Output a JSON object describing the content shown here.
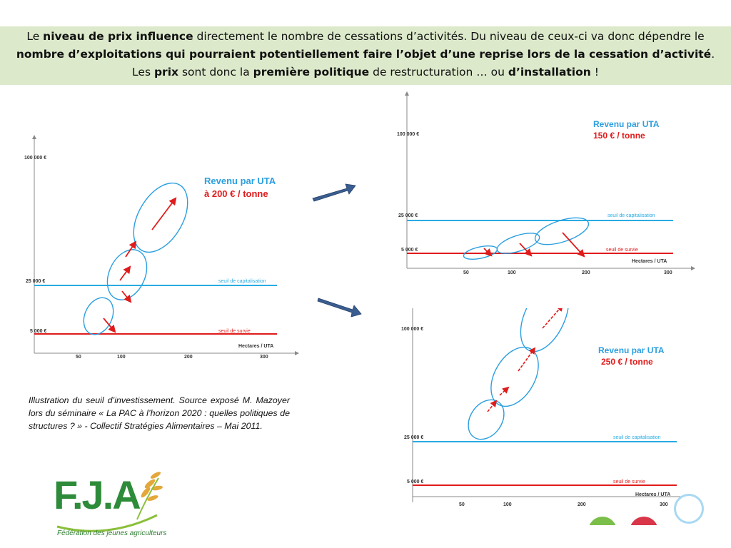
{
  "header": {
    "line1_prefix": "Le ",
    "line1_bold": "niveau de prix influence",
    "line1_suffix": " directement le nombre de cessations d’activités. Du niveau de ceux-ci va donc dépendre le",
    "line2_bold": "nombre d’exploitations qui pourraient potentiellement faire l’objet d’une reprise lors de la cessation d’activité",
    "line2_suffix": ".",
    "line3_a": "Les ",
    "line3_b": "prix",
    "line3_c": " sont donc la ",
    "line3_d": "première politique",
    "line3_e": " de restructuration … ou ",
    "line3_f": "d’installation",
    "line3_g": " !"
  },
  "caption": "Illustration du seuil d’investissement. Source exposé M. Mazoyer lors du séminaire « La PAC à l’horizon 2020 : quelles politiques de structures ? » - Collectif Stratégies Alimentaires – Mai 2011.",
  "logo": {
    "text": "F.J.A",
    "subtitle": "Fédération des jeunes agriculteurs",
    "color": "#2e8b3a"
  },
  "colors": {
    "blue_line": "#29abe2",
    "red_line": "#e01b1b",
    "ellipse": "#2b9fe0",
    "arrow_fill": "#3b5d8f",
    "title_blue": "#2b9fe0",
    "title_red": "#e01b1b"
  },
  "charts": {
    "left": {
      "y_top_label": "100 000 €",
      "y_mid_label": "25 000 €",
      "y_low_label": "5 000 €",
      "x_title": "Hectares / UTA",
      "x_ticks": [
        "50",
        "100",
        "200",
        "300"
      ],
      "line_capital_label": "seuil de capitalisation",
      "line_survie_label": "seuil de survie",
      "title_line1": "Revenu par UTA",
      "title_line2": "à 200 € / tonne"
    },
    "top_right": {
      "y_top_label": "100 000 €",
      "y_mid_label": "25 000 €",
      "y_low_label": "5 000 €",
      "x_title": "Hectares / UTA",
      "x_ticks": [
        "50",
        "100",
        "200",
        "300"
      ],
      "line_capital_label": "seuil de capitalisation",
      "line_survie_label": "seuil de survie",
      "title_line1": "Revenu par UTA",
      "title_line2": "150 € / tonne"
    },
    "bottom_right": {
      "y_top_label": "100 000 €",
      "y_mid_label": "25 000 €",
      "y_low_label": "5 000 €",
      "x_title": "Hectares / UTA",
      "x_ticks": [
        "50",
        "100",
        "200",
        "300"
      ],
      "line_capital_label": "seuil de capitalisation",
      "line_survie_label": "seuil de survie",
      "title_line1": "Revenu par UTA",
      "title_line2": "250 € / tonne"
    }
  }
}
